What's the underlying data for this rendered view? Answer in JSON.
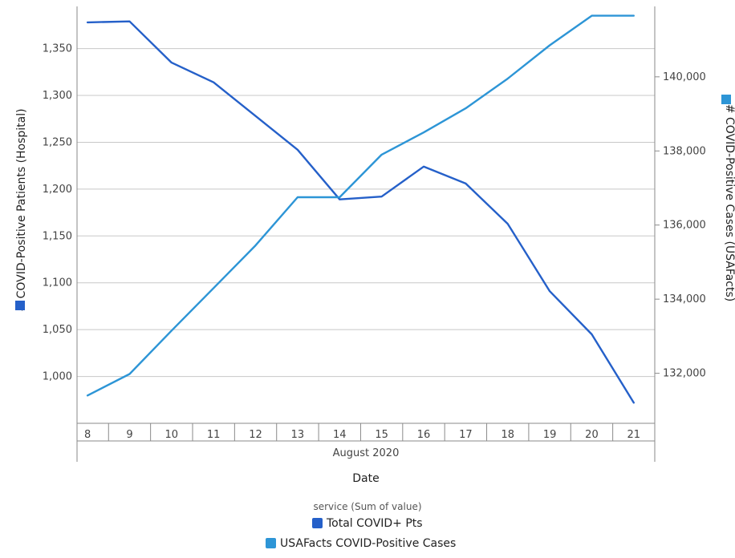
{
  "chart_data": {
    "type": "line",
    "x": [
      "8",
      "9",
      "10",
      "11",
      "12",
      "13",
      "14",
      "15",
      "16",
      "17",
      "18",
      "19",
      "20",
      "21"
    ],
    "x_group_label": "August 2020",
    "xlabel": "Date",
    "ylabel_left": "# COVID-Positive Patients (Hospital)",
    "ylabel_right": "# COVID-Positive Cases (USAFacts)",
    "ylim_left": [
      950,
      1395
    ],
    "ylim_right": [
      130650,
      141900
    ],
    "yticks_left": [
      1000,
      1050,
      1100,
      1150,
      1200,
      1250,
      1300,
      1350
    ],
    "yticks_left_labels": [
      "1,000",
      "1,050",
      "1,100",
      "1,150",
      "1,200",
      "1,250",
      "1,300",
      "1,350"
    ],
    "yticks_right": [
      132000,
      134000,
      136000,
      138000,
      140000
    ],
    "yticks_right_labels": [
      "132,000",
      "134,000",
      "136,000",
      "138,000",
      "140,000"
    ],
    "grid": true,
    "legend_title": "service (Sum of value)",
    "legend_placement": "bottom",
    "series": [
      {
        "name": "Total COVID+ Pts",
        "axis": "left",
        "color": "#2560c9",
        "values": [
          1378,
          1379,
          1335,
          1314,
          1278,
          1242,
          1189,
          1192,
          1224,
          1206,
          1163,
          1091,
          1045,
          972
        ]
      },
      {
        "name": "USAFacts COVID-Positive Cases",
        "axis": "right",
        "color": "#2d95d6",
        "values": [
          131400,
          131980,
          133150,
          134300,
          135450,
          136750,
          136750,
          137900,
          138500,
          139150,
          139950,
          140850,
          141650,
          141650
        ]
      }
    ]
  }
}
